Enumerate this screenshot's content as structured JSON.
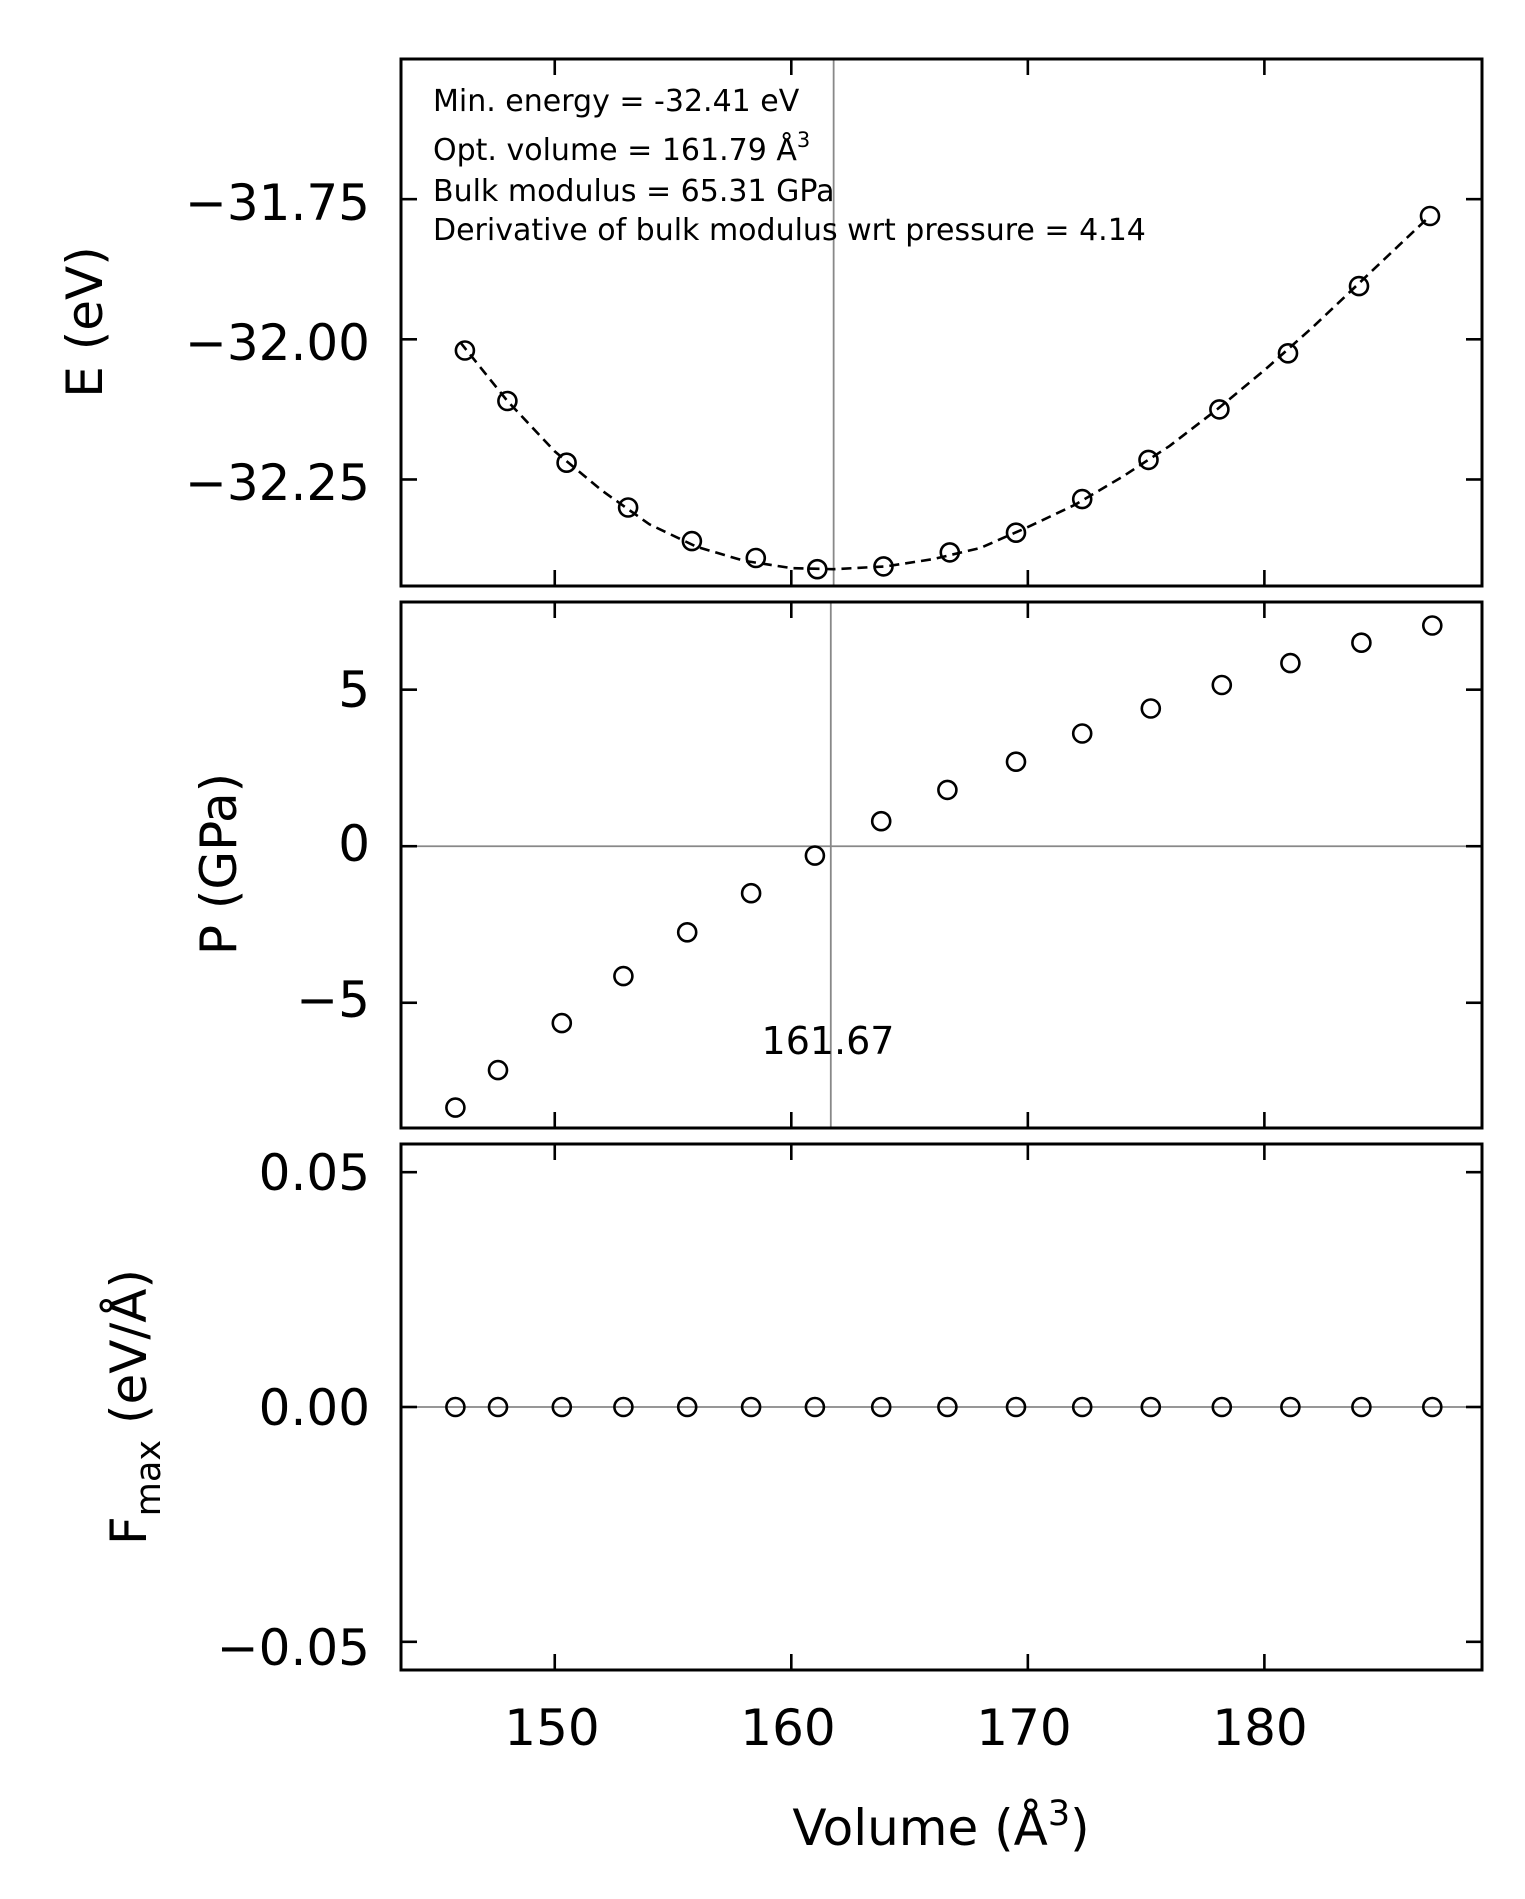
{
  "chart_data": [
    {
      "type": "scatter",
      "panel": "energy",
      "ylabel": "E (eV)",
      "xlim": [
        143.5,
        189.2
      ],
      "ylim": [
        -32.44,
        -31.5
      ],
      "yticks": [
        -31.75,
        -32.0,
        -32.25
      ],
      "ytick_labels": [
        "−31.75",
        "−32.00",
        "−32.25"
      ],
      "xticks": [
        150,
        160,
        170,
        180
      ],
      "x": [
        146.2,
        148.0,
        150.5,
        153.1,
        155.8,
        158.5,
        161.1,
        163.9,
        166.7,
        169.5,
        172.3,
        175.1,
        178.1,
        181.0,
        184.0,
        187.0
      ],
      "y": [
        -32.02,
        -32.11,
        -32.22,
        -32.3,
        -32.36,
        -32.39,
        -32.41,
        -32.405,
        -32.38,
        -32.345,
        -32.285,
        -32.215,
        -32.125,
        -32.025,
        -31.905,
        -31.78
      ],
      "fit_line": {
        "style": "dashed",
        "x": [
          146.0,
          148.0,
          150.0,
          152.0,
          154.0,
          156.0,
          158.0,
          160.0,
          161.79,
          164.0,
          166.0,
          168.0,
          170.0,
          172.0,
          174.0,
          176.0,
          178.0,
          180.0,
          182.0,
          184.0,
          186.0,
          187.0
        ],
        "y": [
          -32.005,
          -32.11,
          -32.2,
          -32.27,
          -32.33,
          -32.37,
          -32.395,
          -32.408,
          -32.41,
          -32.405,
          -32.392,
          -32.372,
          -32.335,
          -32.295,
          -32.245,
          -32.19,
          -32.125,
          -32.055,
          -31.98,
          -31.9,
          -31.82,
          -31.78
        ]
      },
      "vline_x": 161.79,
      "annotations": {
        "min_energy": "Min. energy = -32.41 eV",
        "opt_volume": "Opt. volume = 161.79 Å",
        "opt_volume_sup": "3",
        "bulk_modulus": "Bulk modulus = 65.31 GPa",
        "bulk_derivative": "Derivative of bulk modulus wrt pressure = 4.14"
      }
    },
    {
      "type": "scatter",
      "panel": "pressure",
      "ylabel": "P (GPa)",
      "xlim": [
        143.5,
        189.2
      ],
      "ylim": [
        -9.0,
        7.8
      ],
      "yticks": [
        5,
        0,
        -5
      ],
      "ytick_labels": [
        "5",
        "0",
        "−5"
      ],
      "xticks": [
        150,
        160,
        170,
        180
      ],
      "x": [
        145.8,
        147.6,
        150.3,
        152.9,
        155.6,
        158.3,
        161.0,
        163.8,
        166.6,
        169.5,
        172.3,
        175.2,
        178.2,
        181.1,
        184.1,
        187.1
      ],
      "y": [
        -8.35,
        -7.15,
        -5.65,
        -4.15,
        -2.75,
        -1.5,
        -0.3,
        0.8,
        1.8,
        2.7,
        3.6,
        4.4,
        5.15,
        5.85,
        6.5,
        7.05
      ],
      "vline_x": 161.67,
      "hline_y": 0,
      "vline_label": "161.67"
    },
    {
      "type": "scatter",
      "panel": "force",
      "ylabel": "F",
      "ylabel_sub": "max",
      "ylabel_rest": " (eV/Å)",
      "xlim": [
        143.5,
        189.2
      ],
      "ylim": [
        -0.056,
        0.056
      ],
      "yticks": [
        0.05,
        0.0,
        -0.05
      ],
      "ytick_labels": [
        "0.05",
        "0.00",
        "−0.05"
      ],
      "xticks": [
        150,
        160,
        170,
        180
      ],
      "xtick_labels": [
        "150",
        "160",
        "170",
        "180"
      ],
      "xlabel": "Volume (Å",
      "xlabel_sup": "3",
      "xlabel_end": ")",
      "x": [
        145.8,
        147.6,
        150.3,
        152.9,
        155.6,
        158.3,
        161.0,
        163.8,
        166.6,
        169.5,
        172.3,
        175.2,
        178.2,
        181.1,
        184.1,
        187.1
      ],
      "y": [
        0,
        0,
        0,
        0,
        0,
        0,
        0,
        0,
        0,
        0,
        0,
        0,
        0,
        0,
        0,
        0
      ],
      "hline_y": 0
    }
  ]
}
